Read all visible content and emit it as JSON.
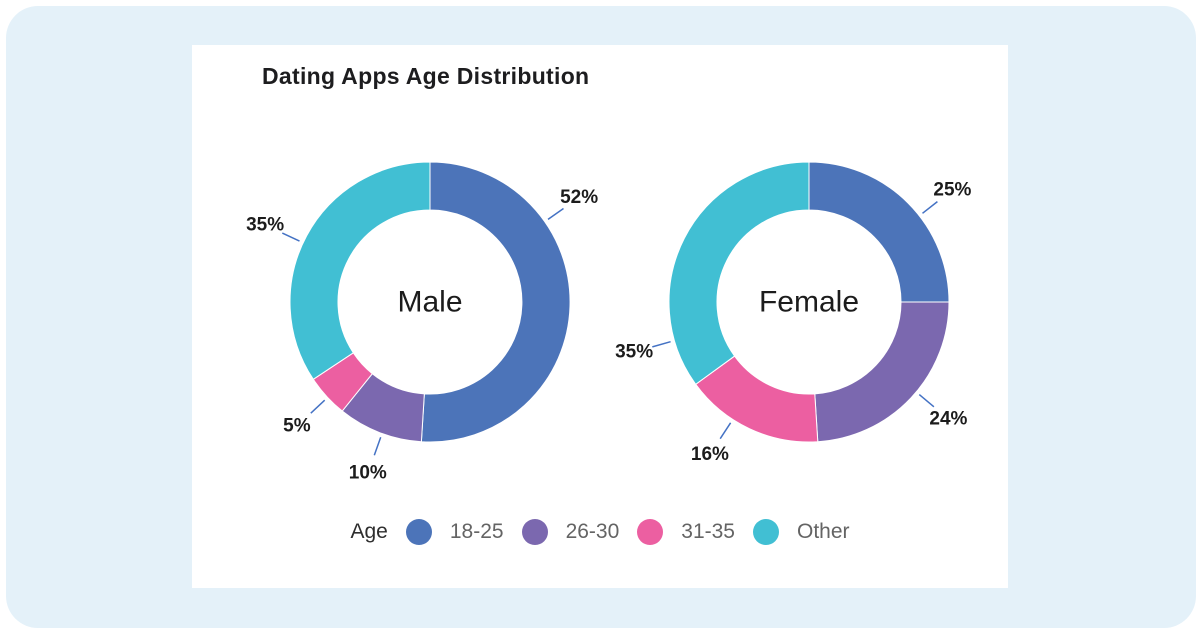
{
  "title": "Dating Apps Age Distribution",
  "colors": {
    "panel_background": "#E4F1F9",
    "card_background": "#FFFFFF",
    "age_18_25": "#4C74B9",
    "age_26_30": "#7B68AF",
    "age_31_35": "#EC5FA1",
    "age_other": "#41BFD3",
    "leader_line": "#4472C4",
    "label_text": "#1C1C1C"
  },
  "legend": {
    "title": "Age",
    "position": "bottom",
    "items": [
      {
        "label": "18-25",
        "color": "#4C74B9"
      },
      {
        "label": "26-30",
        "color": "#7B68AF"
      },
      {
        "label": "31-35",
        "color": "#EC5FA1"
      },
      {
        "label": "Other",
        "color": "#41BFD3"
      }
    ]
  },
  "chart_data": [
    {
      "type": "pie",
      "subtype": "donut",
      "center_label": "Male",
      "categories": [
        "18-25",
        "26-30",
        "31-35",
        "Other"
      ],
      "values": [
        52,
        10,
        5,
        35
      ],
      "labels": [
        "52%",
        "10%",
        "5%",
        "35%"
      ],
      "colors": [
        "#4C74B9",
        "#7B68AF",
        "#EC5FA1",
        "#41BFD3"
      ],
      "label_angles": [
        55,
        200,
        227,
        295
      ],
      "start_angle": 0,
      "direction": "clockwise",
      "inner_radius_ratio": 0.66
    },
    {
      "type": "pie",
      "subtype": "donut",
      "center_label": "Female",
      "categories": [
        "18-25",
        "26-30",
        "31-35",
        "Other"
      ],
      "values": [
        25,
        24,
        16,
        35
      ],
      "labels": [
        "25%",
        "24%",
        "16%",
        "35%"
      ],
      "colors": [
        "#4C74B9",
        "#7B68AF",
        "#EC5FA1",
        "#41BFD3"
      ],
      "label_angles": [
        52,
        130,
        213,
        254
      ],
      "start_angle": 0,
      "direction": "clockwise",
      "inner_radius_ratio": 0.66
    }
  ]
}
